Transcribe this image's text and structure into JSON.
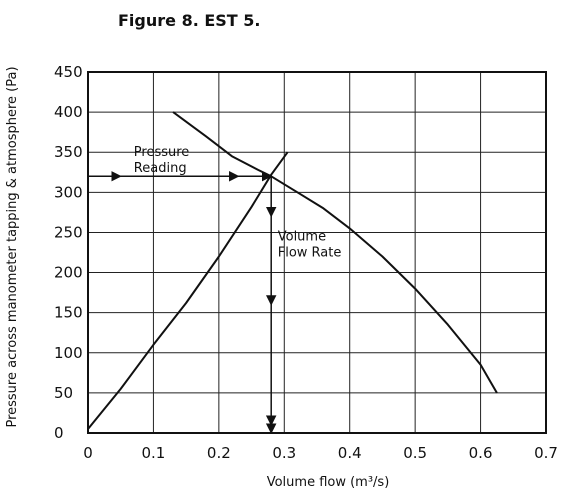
{
  "chart_data": {
    "type": "line",
    "title": "Figure 8. EST 5.",
    "xlabel": "Volume flow (m³/s)",
    "ylabel": "Pressure across manometer tapping & atmosphere (Pa)",
    "xlim": [
      0,
      0.7
    ],
    "ylim": [
      0,
      450
    ],
    "x_ticks": [
      0,
      0.1,
      0.2,
      0.3,
      0.4,
      0.5,
      0.6,
      0.7
    ],
    "x_tick_labels": [
      "0",
      "0.1",
      "0.2",
      "0.3",
      "0.4",
      "0.5",
      "0.6",
      "0.7"
    ],
    "y_ticks": [
      0,
      50,
      100,
      150,
      200,
      250,
      300,
      350,
      400,
      450
    ],
    "y_tick_labels": [
      "0",
      "50",
      "100",
      "150",
      "200",
      "250",
      "300",
      "350",
      "400",
      "450"
    ],
    "grid": true,
    "series": [
      {
        "x": [
          0.0,
          0.05,
          0.1,
          0.15,
          0.2,
          0.25,
          0.28,
          0.305
        ],
        "y": [
          5,
          55,
          110,
          162,
          220,
          282,
          322,
          350
        ]
      },
      {
        "x": [
          0.13,
          0.18,
          0.22,
          0.26,
          0.28,
          0.32,
          0.36,
          0.4,
          0.45,
          0.5,
          0.55,
          0.6,
          0.625
        ],
        "y": [
          400,
          370,
          345,
          328,
          320,
          300,
          280,
          255,
          220,
          180,
          135,
          85,
          50
        ]
      }
    ],
    "annotations": [
      {
        "text_lines": [
          "Pressure",
          "Reading"
        ],
        "x": 0.07,
        "y": 345,
        "arrow_from": [
          0,
          320
        ],
        "arrow_to": [
          0.28,
          320
        ],
        "arrow_marks_at_x": [
          0.05,
          0.23
        ]
      },
      {
        "text_lines": [
          "Volume",
          "Flow Rate"
        ],
        "x": 0.29,
        "y": 240,
        "arrow_from": [
          0.28,
          320
        ],
        "arrow_to": [
          0.28,
          0
        ],
        "arrow_marks_at_y": [
          270,
          160,
          10
        ]
      }
    ]
  }
}
